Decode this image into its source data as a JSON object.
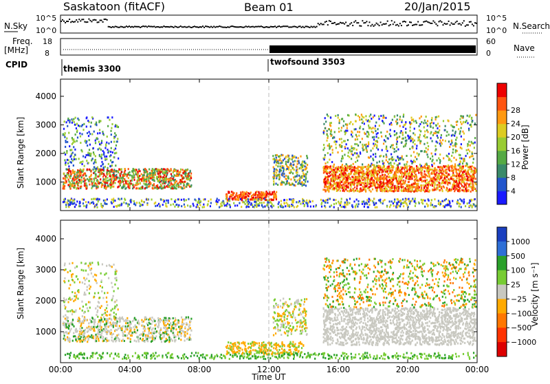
{
  "header": {
    "station": "Saskatoon (fitACF)",
    "beam": "Beam 01",
    "date": "20/Jan/2015"
  },
  "top_panels": {
    "nsky_label": "N.Sky",
    "nsky_ticks": [
      "10^5",
      "10^0"
    ],
    "nsearch_label": "N.Search",
    "nsearch_ticks": [
      "10^5",
      "10^0"
    ],
    "freq_label_1": "Freq.",
    "freq_label_2": "[MHz]",
    "freq_ticks": [
      "18",
      "8"
    ],
    "nave_label": "Nave",
    "nave_ticks": [
      "60",
      "0"
    ],
    "cpid_label": "CPID",
    "cpid_segments": [
      "themis 3300",
      "twofsound 3503"
    ]
  },
  "chart_data": [
    {
      "type": "heatmap",
      "panel": "power",
      "xlabel": "",
      "ylabel": "Slant Range [km]",
      "x_ticks": [
        "00:00",
        "04:00",
        "08:00",
        "12:00",
        "16:00",
        "20:00",
        "00:00"
      ],
      "y_ticks": [
        "1000",
        "2000",
        "3000",
        "4000"
      ],
      "colorbar_label": "Power [dB]",
      "colorbar_ticks": [
        "4",
        "8",
        "12",
        "16",
        "20",
        "24",
        "28"
      ],
      "colors": [
        "#1a1aff",
        "#2255cc",
        "#3a8a6a",
        "#55aa44",
        "#99cc33",
        "#ddcc22",
        "#ff9911",
        "#ff5511",
        "#ee0000"
      ]
    },
    {
      "type": "heatmap",
      "panel": "velocity",
      "xlabel": "Time UT",
      "ylabel": "Slant Range [km]",
      "x_ticks": [
        "00:00",
        "04:00",
        "08:00",
        "12:00",
        "16:00",
        "20:00",
        "00:00"
      ],
      "y_ticks": [
        "1000",
        "2000",
        "3000",
        "4000"
      ],
      "colorbar_label": "Velocity [m s⁻¹]",
      "colorbar_ticks": [
        "1000",
        "500",
        "100",
        "25",
        "−25",
        "−100",
        "−500",
        "−1000"
      ],
      "colors": [
        "#1a3fbf",
        "#2e6fd6",
        "#2aa02a",
        "#77cc33",
        "#c8c8c0",
        "#ffaa00",
        "#ff7700",
        "#ff3300",
        "#dd0000"
      ]
    }
  ]
}
